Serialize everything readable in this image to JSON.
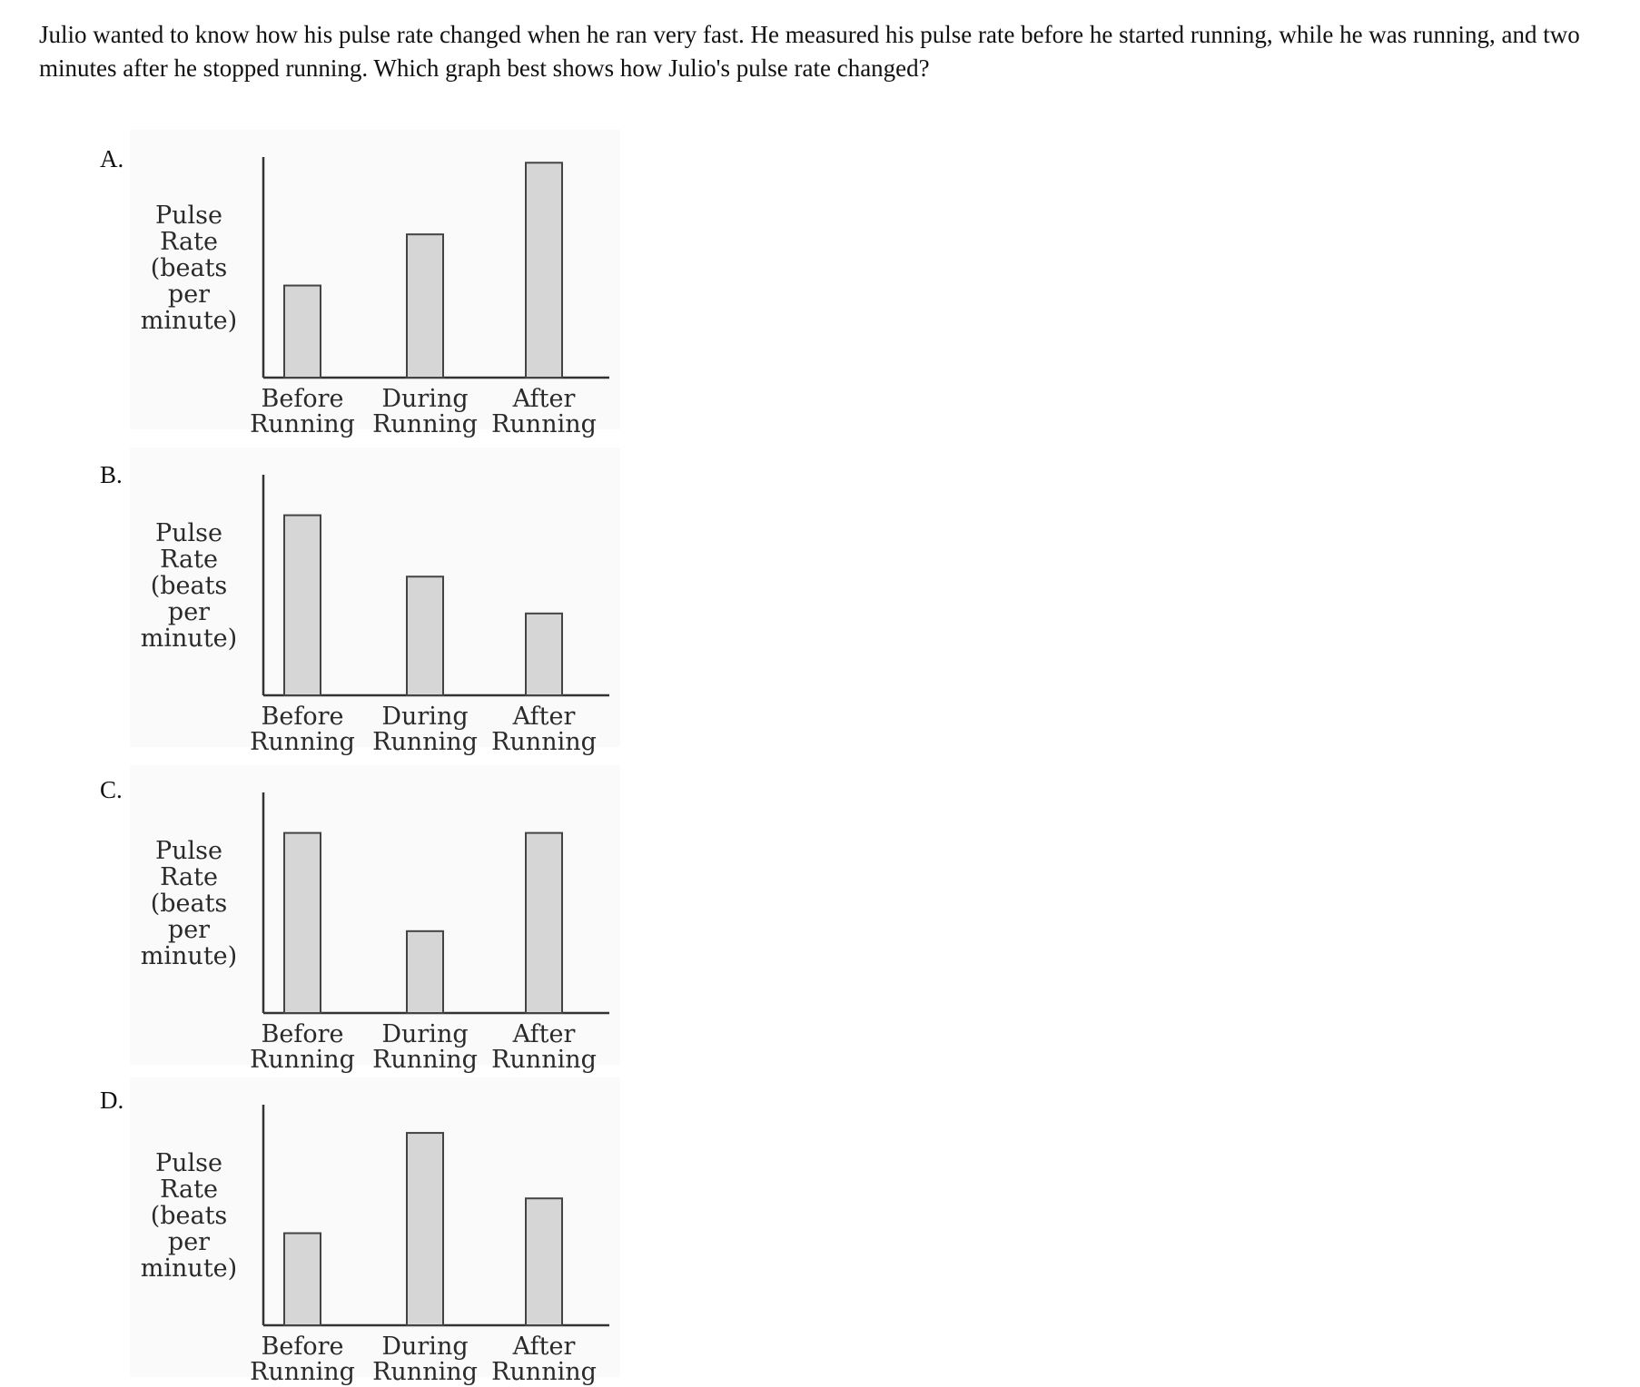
{
  "question": "Julio wanted to know how his pulse rate changed when he ran very fast. He measured his pulse rate before he started running, while he was running, and two minutes after he stopped running. Which graph best shows how Julio's pulse rate changed?",
  "options": [
    {
      "letter": "A."
    },
    {
      "letter": "B."
    },
    {
      "letter": "C."
    },
    {
      "letter": "D."
    }
  ],
  "colors": {
    "bar_fill": "#d6d6d6",
    "bar_stroke": "#444444",
    "axis": "#333333",
    "panel": "#fafafa"
  },
  "chart_data": [
    {
      "type": "bar",
      "ylabel_lines": [
        "Pulse",
        "Rate",
        "(beats",
        "per",
        "minute)"
      ],
      "categories": [
        {
          "line1": "Before",
          "line2": "Running"
        },
        {
          "line1": "During",
          "line2": "Running"
        },
        {
          "line1": "After",
          "line2": "Running"
        }
      ],
      "values": [
        45,
        70,
        105
      ],
      "ylim": [
        0,
        110
      ],
      "grid": false
    },
    {
      "type": "bar",
      "ylabel_lines": [
        "Pulse",
        "Rate",
        "(beats",
        "per",
        "minute)"
      ],
      "categories": [
        {
          "line1": "Before",
          "line2": "Running"
        },
        {
          "line1": "During",
          "line2": "Running"
        },
        {
          "line1": "After",
          "line2": "Running"
        }
      ],
      "values": [
        88,
        58,
        40
      ],
      "ylim": [
        0,
        110
      ],
      "grid": false
    },
    {
      "type": "bar",
      "ylabel_lines": [
        "Pulse",
        "Rate",
        "(beats",
        "per",
        "minute)"
      ],
      "categories": [
        {
          "line1": "Before",
          "line2": "Running"
        },
        {
          "line1": "During",
          "line2": "Running"
        },
        {
          "line1": "After",
          "line2": "Running"
        }
      ],
      "values": [
        88,
        40,
        88
      ],
      "ylim": [
        0,
        110
      ],
      "grid": false
    },
    {
      "type": "bar",
      "ylabel_lines": [
        "Pulse",
        "Rate",
        "(beats",
        "per",
        "minute)"
      ],
      "categories": [
        {
          "line1": "Before",
          "line2": "Running"
        },
        {
          "line1": "During",
          "line2": "Running"
        },
        {
          "line1": "After",
          "line2": "Running"
        }
      ],
      "values": [
        45,
        94,
        62
      ],
      "ylim": [
        0,
        110
      ],
      "grid": false
    }
  ]
}
